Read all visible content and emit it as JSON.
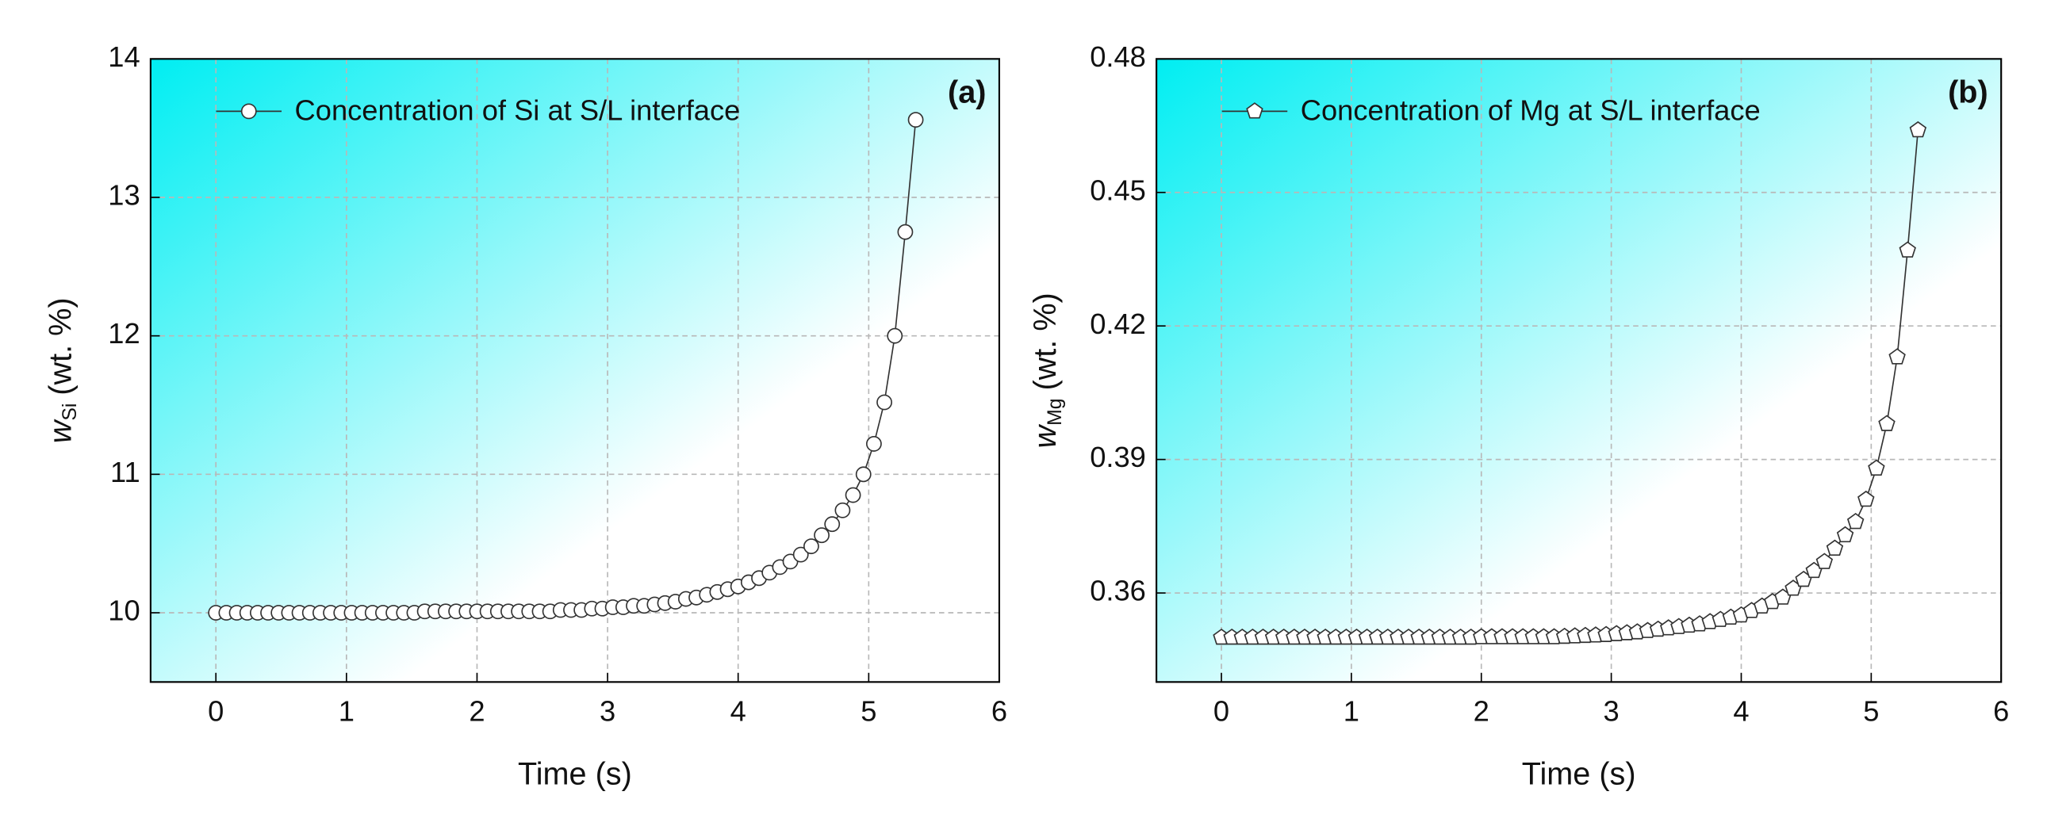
{
  "chart_data": [
    {
      "type": "line",
      "panel_label": "(a)",
      "x_label": "Time (s)",
      "y_label": {
        "symbol": "w",
        "subscript": "Si",
        "unit": "(wt. %)"
      },
      "xlim": [
        -0.5,
        6
      ],
      "ylim": [
        9.5,
        14
      ],
      "xticks": [
        0,
        1,
        2,
        3,
        4,
        5,
        6
      ],
      "yticks": [
        10,
        11,
        12,
        13,
        14
      ],
      "grid": true,
      "x": [
        0,
        0.08,
        0.16,
        0.24,
        0.32,
        0.4,
        0.48,
        0.56,
        0.64,
        0.72,
        0.8,
        0.88,
        0.96,
        1.04,
        1.12,
        1.2,
        1.28,
        1.36,
        1.44,
        1.52,
        1.6,
        1.68,
        1.76,
        1.84,
        1.92,
        2,
        2.08,
        2.16,
        2.24,
        2.32,
        2.4,
        2.48,
        2.56,
        2.64,
        2.72,
        2.8,
        2.88,
        2.96,
        3.04,
        3.12,
        3.2,
        3.28,
        3.36,
        3.44,
        3.52,
        3.6,
        3.68,
        3.76,
        3.84,
        3.92,
        4,
        4.08,
        4.16,
        4.24,
        4.32,
        4.4,
        4.48,
        4.56,
        4.64,
        4.72,
        4.8,
        4.88,
        4.96,
        5.04,
        5.12,
        5.2,
        5.28,
        5.36
      ],
      "series": [
        {
          "name": "Concentration of Si at S/L interface",
          "color": "#333333",
          "marker": "circle",
          "values": [
            10,
            10,
            10,
            10,
            10,
            10,
            10,
            10,
            10,
            10,
            10,
            10,
            10,
            10,
            10,
            10,
            10,
            10,
            10,
            10,
            10.01,
            10.01,
            10.01,
            10.01,
            10.01,
            10.01,
            10.01,
            10.01,
            10.01,
            10.01,
            10.01,
            10.01,
            10.01,
            10.02,
            10.02,
            10.02,
            10.03,
            10.03,
            10.04,
            10.04,
            10.05,
            10.05,
            10.06,
            10.07,
            10.08,
            10.1,
            10.11,
            10.13,
            10.15,
            10.17,
            10.19,
            10.22,
            10.25,
            10.29,
            10.33,
            10.37,
            10.42,
            10.48,
            10.56,
            10.64,
            10.74,
            10.85,
            11.0,
            11.22,
            11.52,
            12.0,
            12.75,
            13.56
          ]
        }
      ]
    },
    {
      "type": "line",
      "panel_label": "(b)",
      "x_label": "Time (s)",
      "y_label": {
        "symbol": "w",
        "subscript": "Mg",
        "unit": "(wt. %)"
      },
      "xlim": [
        -0.5,
        6
      ],
      "ylim": [
        0.34,
        0.48
      ],
      "xticks": [
        0,
        1,
        2,
        3,
        4,
        5,
        6
      ],
      "yticks": [
        0.36,
        0.39,
        0.42,
        0.45,
        0.48
      ],
      "grid": true,
      "x": [
        0,
        0.08,
        0.16,
        0.24,
        0.32,
        0.4,
        0.48,
        0.56,
        0.64,
        0.72,
        0.8,
        0.88,
        0.96,
        1.04,
        1.12,
        1.2,
        1.28,
        1.36,
        1.44,
        1.52,
        1.6,
        1.68,
        1.76,
        1.84,
        1.92,
        2,
        2.08,
        2.16,
        2.24,
        2.32,
        2.4,
        2.48,
        2.56,
        2.64,
        2.72,
        2.8,
        2.88,
        2.96,
        3.04,
        3.12,
        3.2,
        3.28,
        3.36,
        3.44,
        3.52,
        3.6,
        3.68,
        3.76,
        3.84,
        3.92,
        4,
        4.08,
        4.16,
        4.24,
        4.32,
        4.4,
        4.48,
        4.56,
        4.64,
        4.72,
        4.8,
        4.88,
        4.96,
        5.04,
        5.12,
        5.2,
        5.28,
        5.36
      ],
      "series": [
        {
          "name": "Concentration of Mg at S/L interface",
          "color": "#333333",
          "marker": "pentagon",
          "values": [
            0.35,
            0.35,
            0.35,
            0.35,
            0.35,
            0.35,
            0.35,
            0.35,
            0.35,
            0.35,
            0.35,
            0.35,
            0.35,
            0.35,
            0.35,
            0.35,
            0.35,
            0.35,
            0.35,
            0.35,
            0.35,
            0.35,
            0.35,
            0.35,
            0.35,
            0.3501,
            0.3501,
            0.3501,
            0.3501,
            0.3501,
            0.3501,
            0.3501,
            0.3501,
            0.3502,
            0.3503,
            0.3504,
            0.3505,
            0.3506,
            0.3508,
            0.351,
            0.3512,
            0.3515,
            0.3518,
            0.3521,
            0.3524,
            0.3527,
            0.353,
            0.3535,
            0.354,
            0.3545,
            0.355,
            0.356,
            0.357,
            0.358,
            0.359,
            0.361,
            0.363,
            0.365,
            0.367,
            0.37,
            0.373,
            0.376,
            0.381,
            0.388,
            0.398,
            0.413,
            0.437,
            0.464
          ]
        }
      ]
    }
  ]
}
